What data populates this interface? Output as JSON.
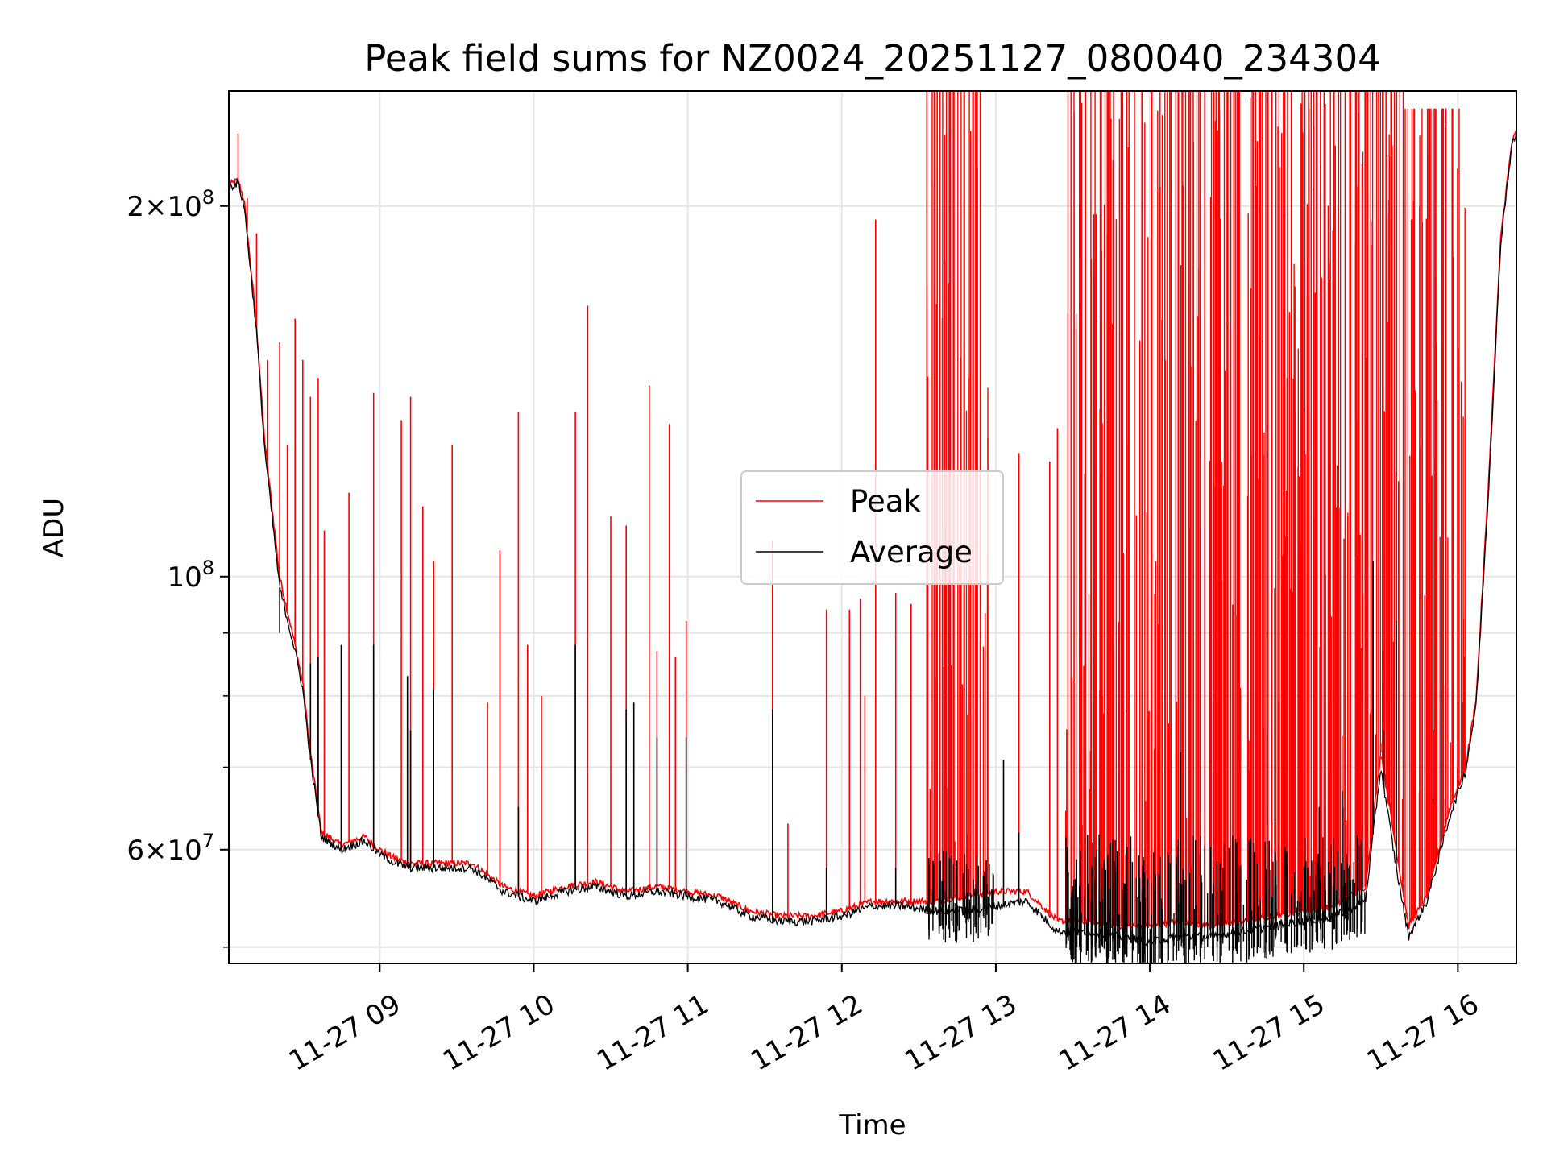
{
  "chart_data": {
    "type": "line",
    "title": "Peak field sums for NZ0024_20251127_080040_234304",
    "xlabel": "Time",
    "ylabel": "ADU",
    "yscale": "log",
    "xlim": [
      8.02,
      16.38
    ],
    "ylim": [
      48500000,
      248000000
    ],
    "x_units": "hours (2025-11-27)",
    "x_ticks": [
      {
        "value": 9,
        "label": "11-27 09"
      },
      {
        "value": 10,
        "label": "11-27 10"
      },
      {
        "value": 11,
        "label": "11-27 11"
      },
      {
        "value": 12,
        "label": "11-27 12"
      },
      {
        "value": 13,
        "label": "11-27 13"
      },
      {
        "value": 14,
        "label": "11-27 14"
      },
      {
        "value": 15,
        "label": "11-27 15"
      },
      {
        "value": 16,
        "label": "11-27 16"
      }
    ],
    "y_ticks_major": [
      {
        "value": 60000000,
        "mantissa": "6×10",
        "exp": "7"
      },
      {
        "value": 100000000,
        "mantissa": "10",
        "exp": "8"
      },
      {
        "value": 200000000,
        "mantissa": "2×10",
        "exp": "8"
      }
    ],
    "y_ticks_minor": [
      50000000,
      70000000,
      80000000,
      90000000
    ],
    "grid": true,
    "legend": {
      "placement": "center",
      "entries": [
        "Peak",
        "Average"
      ]
    },
    "series": [
      {
        "name": "Peak",
        "color": "#ff0000",
        "baseline": [
          [
            8.02,
            208000000
          ],
          [
            8.08,
            210000000
          ],
          [
            8.12,
            202000000
          ],
          [
            8.2,
            160000000
          ],
          [
            8.25,
            130000000
          ],
          [
            8.35,
            100000000
          ],
          [
            8.45,
            88000000
          ],
          [
            8.5,
            82000000
          ],
          [
            8.55,
            72000000
          ],
          [
            8.62,
            62000000
          ],
          [
            8.75,
            60500000
          ],
          [
            8.9,
            61500000
          ],
          [
            9.0,
            60000000
          ],
          [
            9.1,
            59000000
          ],
          [
            9.2,
            58500000
          ],
          [
            9.4,
            58500000
          ],
          [
            9.6,
            58500000
          ],
          [
            9.8,
            56000000
          ],
          [
            10.0,
            55000000
          ],
          [
            10.2,
            56000000
          ],
          [
            10.4,
            56500000
          ],
          [
            10.6,
            55500000
          ],
          [
            10.8,
            56000000
          ],
          [
            11.0,
            55500000
          ],
          [
            11.2,
            55000000
          ],
          [
            11.4,
            53500000
          ],
          [
            11.6,
            53000000
          ],
          [
            11.8,
            53000000
          ],
          [
            12.0,
            53500000
          ],
          [
            12.2,
            54500000
          ],
          [
            12.4,
            54500000
          ],
          [
            12.6,
            54500000
          ],
          [
            12.8,
            55000000
          ],
          [
            13.0,
            55500000
          ],
          [
            13.2,
            55500000
          ],
          [
            13.4,
            52500000
          ],
          [
            13.6,
            52500000
          ],
          [
            13.8,
            52000000
          ],
          [
            14.0,
            52000000
          ],
          [
            14.2,
            52500000
          ],
          [
            14.4,
            52000000
          ],
          [
            14.6,
            52500000
          ],
          [
            14.8,
            53000000
          ],
          [
            15.0,
            53500000
          ],
          [
            15.2,
            54000000
          ],
          [
            15.4,
            56000000
          ],
          [
            15.5,
            72000000
          ],
          [
            15.6,
            60000000
          ],
          [
            15.68,
            52000000
          ],
          [
            15.8,
            55000000
          ],
          [
            15.95,
            65000000
          ],
          [
            16.05,
            70000000
          ],
          [
            16.12,
            80000000
          ],
          [
            16.2,
            120000000
          ],
          [
            16.28,
            190000000
          ],
          [
            16.35,
            225000000
          ],
          [
            16.38,
            230000000
          ]
        ],
        "spikes": [
          [
            8.08,
            229000000
          ],
          [
            8.14,
            203000000
          ],
          [
            8.2,
            190000000
          ],
          [
            8.27,
            150000000
          ],
          [
            8.35,
            155000000
          ],
          [
            8.4,
            128000000
          ],
          [
            8.45,
            162000000
          ],
          [
            8.5,
            150000000
          ],
          [
            8.55,
            140000000
          ],
          [
            8.6,
            145000000
          ],
          [
            8.64,
            109000000
          ],
          [
            8.8,
            117000000
          ],
          [
            8.96,
            141000000
          ],
          [
            9.14,
            134000000
          ],
          [
            9.2,
            140000000
          ],
          [
            9.28,
            114000000
          ],
          [
            9.35,
            103000000
          ],
          [
            9.47,
            128000000
          ],
          [
            9.7,
            79000000
          ],
          [
            9.78,
            105000000
          ],
          [
            9.9,
            136000000
          ],
          [
            9.96,
            88000000
          ],
          [
            10.05,
            80000000
          ],
          [
            10.27,
            136000000
          ],
          [
            10.35,
            166000000
          ],
          [
            10.5,
            112000000
          ],
          [
            10.6,
            110000000
          ],
          [
            10.75,
            143000000
          ],
          [
            10.8,
            87000000
          ],
          [
            10.88,
            133000000
          ],
          [
            10.92,
            86000000
          ],
          [
            10.99,
            92000000
          ],
          [
            11.55,
            107000000
          ],
          [
            11.65,
            63000000
          ],
          [
            11.9,
            94000000
          ],
          [
            12.05,
            94000000
          ],
          [
            12.12,
            96000000
          ],
          [
            12.15,
            80000000
          ],
          [
            12.22,
            195000000
          ],
          [
            12.35,
            97000000
          ],
          [
            12.45,
            95000000
          ],
          [
            13.15,
            126000000
          ],
          [
            13.35,
            124000000
          ],
          [
            13.4,
            132000000
          ],
          [
            13.55,
            132000000
          ],
          [
            13.85,
            128000000
          ],
          [
            14.1,
            150000000
          ],
          [
            14.7,
            120000000
          ],
          [
            15.55,
            90000000
          ],
          [
            15.7,
            110000000
          ]
        ],
        "dense_regions": [
          {
            "x_range": [
              12.55,
              12.95
            ],
            "max_value": 248000000
          },
          {
            "x_range": [
              13.45,
              15.65
            ],
            "max_value": 248000000
          },
          {
            "x_range": [
              15.65,
              16.05
            ],
            "max_value": 240000000
          }
        ]
      },
      {
        "name": "Average",
        "color": "#000000",
        "baseline": [
          [
            8.02,
            207000000
          ],
          [
            8.08,
            209000000
          ],
          [
            8.12,
            200000000
          ],
          [
            8.2,
            158000000
          ],
          [
            8.25,
            128000000
          ],
          [
            8.35,
            98000000
          ],
          [
            8.45,
            87000000
          ],
          [
            8.5,
            81000000
          ],
          [
            8.55,
            71000000
          ],
          [
            8.62,
            61500000
          ],
          [
            8.75,
            60000000
          ],
          [
            8.9,
            61000000
          ],
          [
            9.0,
            59500000
          ],
          [
            9.1,
            58500000
          ],
          [
            9.2,
            58000000
          ],
          [
            9.4,
            58000000
          ],
          [
            9.6,
            58000000
          ],
          [
            9.8,
            55500000
          ],
          [
            10.0,
            54500000
          ],
          [
            10.2,
            55500000
          ],
          [
            10.4,
            56000000
          ],
          [
            10.6,
            55000000
          ],
          [
            10.8,
            55500000
          ],
          [
            11.0,
            55000000
          ],
          [
            11.2,
            54500000
          ],
          [
            11.4,
            53000000
          ],
          [
            11.6,
            52500000
          ],
          [
            11.8,
            52500000
          ],
          [
            12.0,
            53000000
          ],
          [
            12.2,
            54000000
          ],
          [
            12.4,
            54000000
          ],
          [
            12.6,
            53500000
          ],
          [
            12.8,
            53500000
          ],
          [
            13.0,
            54000000
          ],
          [
            13.2,
            54500000
          ],
          [
            13.4,
            51500000
          ],
          [
            13.6,
            51500000
          ],
          [
            13.8,
            51000000
          ],
          [
            14.0,
            50500000
          ],
          [
            14.2,
            51000000
          ],
          [
            14.4,
            51000000
          ],
          [
            14.6,
            51500000
          ],
          [
            14.8,
            52000000
          ],
          [
            15.0,
            52500000
          ],
          [
            15.2,
            53000000
          ],
          [
            15.4,
            54500000
          ],
          [
            15.5,
            70000000
          ],
          [
            15.6,
            58000000
          ],
          [
            15.68,
            51000000
          ],
          [
            15.8,
            54500000
          ],
          [
            15.95,
            64000000
          ],
          [
            16.05,
            69500000
          ],
          [
            16.12,
            79000000
          ],
          [
            16.2,
            118000000
          ],
          [
            16.28,
            188000000
          ],
          [
            16.35,
            224000000
          ],
          [
            16.38,
            229000000
          ]
        ],
        "spikes": [
          [
            8.35,
            90000000
          ],
          [
            8.55,
            85000000
          ],
          [
            8.6,
            86000000
          ],
          [
            8.75,
            88000000
          ],
          [
            8.96,
            88000000
          ],
          [
            9.18,
            83000000
          ],
          [
            9.2,
            75000000
          ],
          [
            9.35,
            81000000
          ],
          [
            9.9,
            65000000
          ],
          [
            10.27,
            88000000
          ],
          [
            10.6,
            78000000
          ],
          [
            10.65,
            79000000
          ],
          [
            10.8,
            74000000
          ],
          [
            10.99,
            74000000
          ],
          [
            11.55,
            78000000
          ],
          [
            11.9,
            58000000
          ],
          [
            12.35,
            58000000
          ],
          [
            13.05,
            71000000
          ],
          [
            13.15,
            62000000
          ],
          [
            14.2,
            72000000
          ],
          [
            15.1,
            65000000
          ],
          [
            15.25,
            67000000
          ],
          [
            15.45,
            103000000
          ],
          [
            15.52,
            75000000
          ],
          [
            15.6,
            92000000
          ]
        ],
        "dense_regions": [
          {
            "x_range": [
              12.55,
              13.0
            ],
            "max_value": 60000000
          },
          {
            "x_range": [
              13.45,
              15.4
            ],
            "max_value": 62000000
          }
        ]
      }
    ]
  }
}
